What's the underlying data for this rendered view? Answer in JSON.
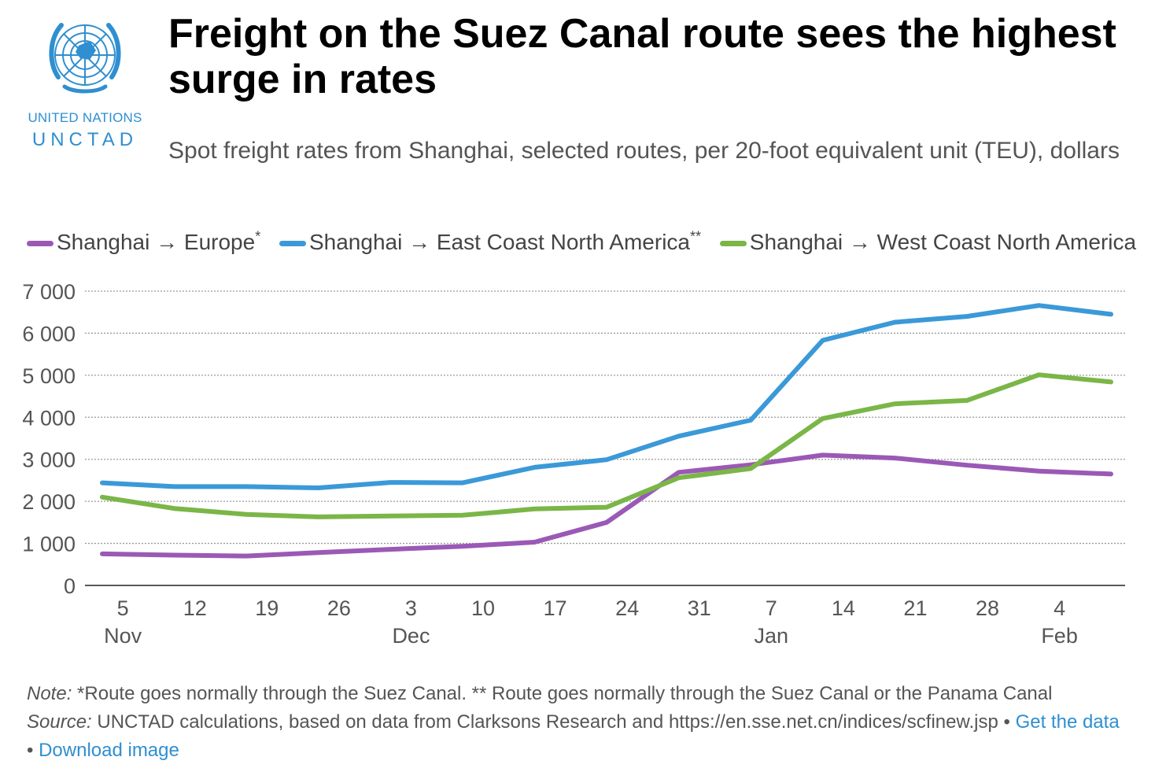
{
  "colors": {
    "europe": "#9b59b6",
    "east_coast": "#3b99d8",
    "west_coast": "#7ab648",
    "unctad_blue": "#2f8fd0",
    "link": "#2f8fd0"
  },
  "logo": {
    "icon": "un-emblem-icon",
    "line1": "UNITED NATIONS",
    "line2": "UNCTAD"
  },
  "header": {
    "title": "Freight on the Suez Canal route sees the highest surge in rates",
    "subtitle": "Spot freight rates from Shanghai, selected routes, per 20-foot equivalent unit (TEU), dollars"
  },
  "legend": [
    {
      "label": "Shanghai → Europe",
      "sup": "*"
    },
    {
      "label": "Shanghai → East Coast North America",
      "sup": "**"
    },
    {
      "label": "Shanghai → West Coast North America",
      "sup": ""
    }
  ],
  "chart_data": {
    "type": "line",
    "x": [
      "2023-11-03",
      "2023-11-10",
      "2023-11-17",
      "2023-11-24",
      "2023-12-01",
      "2023-12-08",
      "2023-12-15",
      "2023-12-22",
      "2023-12-29",
      "2024-01-05",
      "2024-01-12",
      "2024-01-19",
      "2024-01-26",
      "2024-02-02",
      "2024-02-09"
    ],
    "x_ticks": [
      {
        "date": "2023-11-05",
        "label": "5",
        "month": "Nov"
      },
      {
        "date": "2023-11-12",
        "label": "12",
        "month": ""
      },
      {
        "date": "2023-11-19",
        "label": "19",
        "month": ""
      },
      {
        "date": "2023-11-26",
        "label": "26",
        "month": ""
      },
      {
        "date": "2023-12-03",
        "label": "3",
        "month": "Dec"
      },
      {
        "date": "2023-12-10",
        "label": "10",
        "month": ""
      },
      {
        "date": "2023-12-17",
        "label": "17",
        "month": ""
      },
      {
        "date": "2023-12-24",
        "label": "24",
        "month": ""
      },
      {
        "date": "2023-12-31",
        "label": "31",
        "month": ""
      },
      {
        "date": "2024-01-07",
        "label": "7",
        "month": "Jan"
      },
      {
        "date": "2024-01-14",
        "label": "14",
        "month": ""
      },
      {
        "date": "2024-01-21",
        "label": "21",
        "month": ""
      },
      {
        "date": "2024-01-28",
        "label": "28",
        "month": ""
      },
      {
        "date": "2024-02-04",
        "label": "4",
        "month": "Feb"
      }
    ],
    "y_ticks": [
      "0",
      "1 000",
      "2 000",
      "3 000",
      "4 000",
      "5 000",
      "6 000",
      "7 000"
    ],
    "ylim": [
      0,
      7000
    ],
    "grid": true,
    "legend_position": "top",
    "series": [
      {
        "name": "Shanghai → Europe",
        "color": "#9b59b6",
        "values": [
          750,
          720,
          700,
          780,
          860,
          930,
          1030,
          1500,
          2690,
          2870,
          3100,
          3030,
          2860,
          2720,
          2650
        ]
      },
      {
        "name": "Shanghai → East Coast North America",
        "color": "#3b99d8",
        "values": [
          2440,
          2350,
          2350,
          2320,
          2450,
          2440,
          2810,
          2990,
          3550,
          3930,
          5830,
          6260,
          6400,
          6660,
          6450
        ]
      },
      {
        "name": "Shanghai → West Coast North America",
        "color": "#7ab648",
        "values": [
          2100,
          1830,
          1690,
          1630,
          1650,
          1670,
          1820,
          1860,
          2560,
          2780,
          3970,
          4320,
          4400,
          5010,
          4840
        ]
      }
    ]
  },
  "footer": {
    "note_label": "Note:",
    "note_text": "*Route goes normally through the Suez Canal. ** Route goes normally through the Suez Canal or the Panama Canal",
    "source_label": "Source:",
    "source_text": "UNCTAD calculations, based on data from Clarksons Research and https://en.sse.net.cn/indices/scfinew.jsp",
    "separator": "•",
    "get_data": "Get the data",
    "download": "Download image"
  }
}
